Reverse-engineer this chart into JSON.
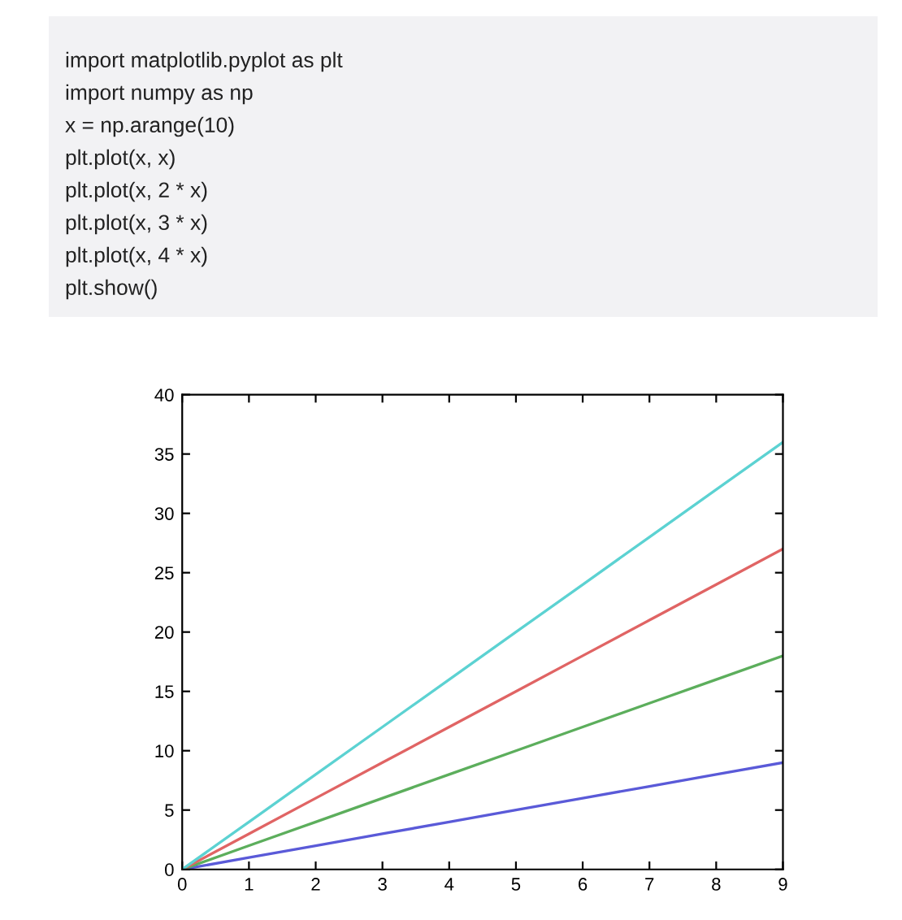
{
  "chart_data": {
    "type": "line",
    "x": [
      0,
      1,
      2,
      3,
      4,
      5,
      6,
      7,
      8,
      9
    ],
    "series": [
      {
        "color": "#5a5ad8",
        "values": [
          0,
          1,
          2,
          3,
          4,
          5,
          6,
          7,
          8,
          9
        ]
      },
      {
        "color": "#5cae5c",
        "values": [
          0,
          2,
          4,
          6,
          8,
          10,
          12,
          14,
          16,
          18
        ]
      },
      {
        "color": "#e06464",
        "values": [
          0,
          3,
          6,
          9,
          12,
          15,
          18,
          21,
          24,
          27
        ]
      },
      {
        "color": "#5cd2d2",
        "values": [
          0,
          4,
          8,
          12,
          16,
          20,
          24,
          28,
          32,
          36
        ]
      }
    ],
    "xlim": [
      0,
      9
    ],
    "xticks": [
      0,
      1,
      2,
      3,
      4,
      5,
      6,
      7,
      8,
      9
    ],
    "ylim": [
      0,
      40
    ],
    "yticks": [
      0,
      5,
      10,
      15,
      20,
      25,
      30,
      35,
      40
    ],
    "grid": false,
    "marker": "none",
    "line_style": "solid",
    "annotations": [
      "import matplotlib.pyplot as plt",
      "import numpy as np",
      "x = np.arange(10)",
      "plt.plot(x, x)",
      "plt.plot(x, 2 * x)",
      "plt.plot(x, 3 * x)",
      "plt.plot(x, 4 * x)",
      "plt.show()"
    ]
  }
}
